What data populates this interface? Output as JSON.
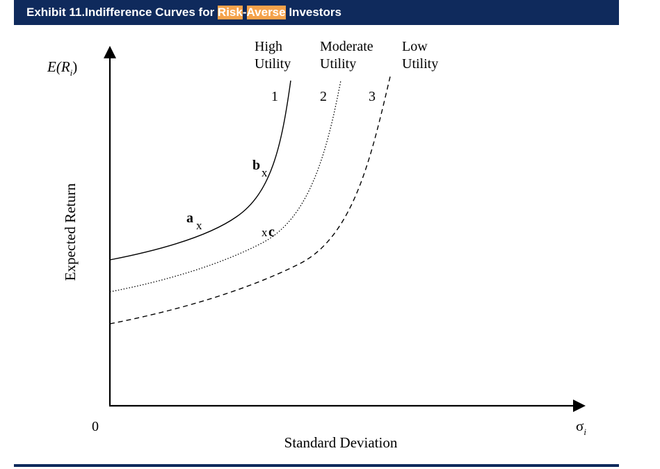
{
  "header": {
    "exhibit": "Exhibit 11.",
    "title_before": "Indifference Curves for ",
    "hl_risk": "Risk",
    "dash": "-",
    "hl_averse": "Averse",
    "title_after": " Investors",
    "bg_color": "#0f2a5c",
    "highlight_color": "#f5a24b"
  },
  "diagram": {
    "y_axis_symbol": "E(R",
    "y_axis_sub": "i",
    "y_axis_close": ")",
    "y_axis_label": "Expected Return",
    "x_axis_symbol": "σ",
    "x_axis_sub": "i",
    "x_axis_label": "Standard Deviation",
    "origin_label": "0",
    "curves": [
      {
        "number": "1",
        "label_line1": "High",
        "label_line2": "Utility",
        "style": "solid"
      },
      {
        "number": "2",
        "label_line1": "Moderate",
        "label_line2": "Utility",
        "style": "dotted"
      },
      {
        "number": "3",
        "label_line1": "Low",
        "label_line2": "Utility",
        "style": "dashed"
      }
    ],
    "points": [
      {
        "letter": "a",
        "mark": "x",
        "curve": "1"
      },
      {
        "letter": "b",
        "mark": "x",
        "curve": "1"
      },
      {
        "letter": "c",
        "mark": "x",
        "curve": "2"
      }
    ]
  }
}
